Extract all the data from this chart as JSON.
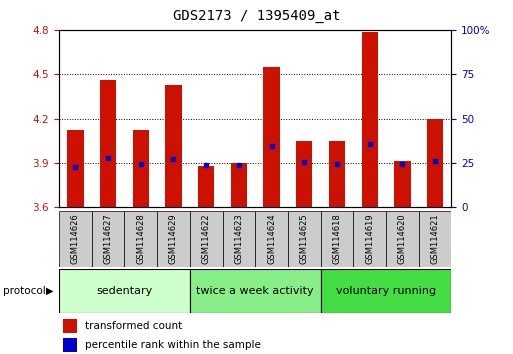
{
  "title": "GDS2173 / 1395409_at",
  "samples": [
    "GSM114626",
    "GSM114627",
    "GSM114628",
    "GSM114629",
    "GSM114622",
    "GSM114623",
    "GSM114624",
    "GSM114625",
    "GSM114618",
    "GSM114619",
    "GSM114620",
    "GSM114621"
  ],
  "bar_tops": [
    4.12,
    4.46,
    4.12,
    4.43,
    3.88,
    3.9,
    4.55,
    4.05,
    4.05,
    4.79,
    3.91,
    4.2
  ],
  "bar_base": 3.6,
  "percentile_values": [
    3.875,
    3.935,
    3.895,
    3.925,
    3.882,
    3.885,
    4.015,
    3.905,
    3.895,
    4.025,
    3.895,
    3.91
  ],
  "ylim": [
    3.6,
    4.8
  ],
  "y2lim": [
    0,
    100
  ],
  "yticks": [
    3.6,
    3.9,
    4.2,
    4.5,
    4.8
  ],
  "y2ticks": [
    0,
    25,
    50,
    75,
    100
  ],
  "bar_color": "#cc1100",
  "dot_color": "#0000cc",
  "groups": [
    {
      "label": "sedentary",
      "start": 0,
      "end": 4,
      "color": "#ccffcc"
    },
    {
      "label": "twice a week activity",
      "start": 4,
      "end": 8,
      "color": "#88ee88"
    },
    {
      "label": "voluntary running",
      "start": 8,
      "end": 12,
      "color": "#44dd44"
    }
  ],
  "protocol_label": "protocol",
  "legend_bar_label": "transformed count",
  "legend_dot_label": "percentile rank within the sample",
  "bar_width": 0.5,
  "title_fontsize": 10,
  "tick_fontsize": 7.5,
  "sample_fontsize": 6.0,
  "group_fontsize": 8.0
}
